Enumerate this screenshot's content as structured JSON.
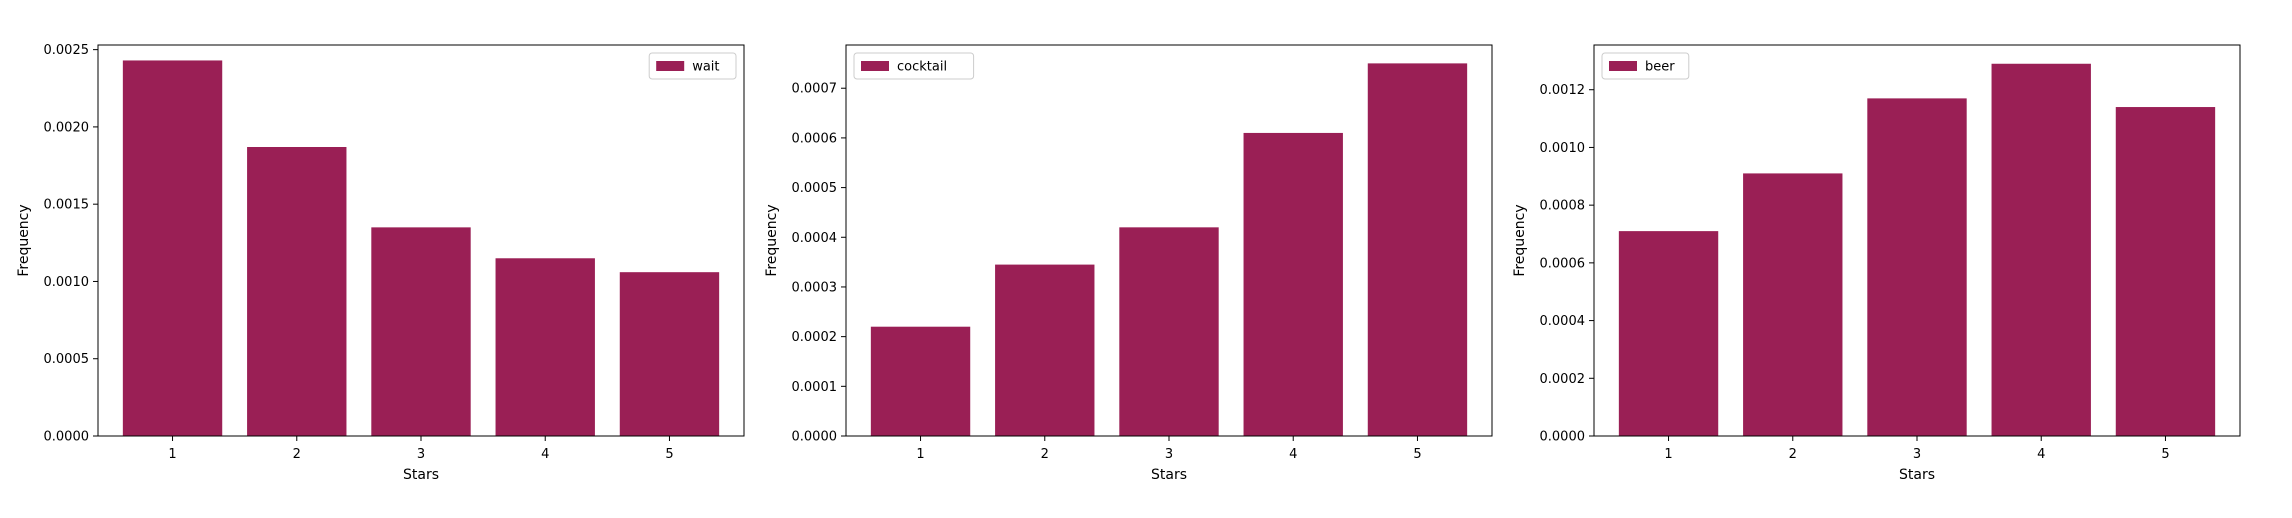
{
  "chart_data": [
    {
      "type": "bar",
      "categories": [
        "1",
        "2",
        "3",
        "4",
        "5"
      ],
      "series": [
        {
          "name": "wait",
          "values": [
            0.00243,
            0.00187,
            0.00135,
            0.00115,
            0.00106
          ]
        }
      ],
      "xlabel": "Stars",
      "ylabel": "Frequency",
      "ylim": [
        0,
        0.00253
      ],
      "yticks": [
        "0.0000",
        "0.0005",
        "0.0010",
        "0.0015",
        "0.0020",
        "0.0025"
      ],
      "legend_position": "top-right",
      "grid": false,
      "bar_color": "#9a1f55"
    },
    {
      "type": "bar",
      "categories": [
        "1",
        "2",
        "3",
        "4",
        "5"
      ],
      "series": [
        {
          "name": "cocktail",
          "values": [
            0.00022,
            0.000345,
            0.00042,
            0.00061,
            0.00075
          ]
        }
      ],
      "xlabel": "Stars",
      "ylabel": "Frequency",
      "ylim": [
        0,
        0.000787
      ],
      "yticks": [
        "0.0000",
        "0.0001",
        "0.0002",
        "0.0003",
        "0.0004",
        "0.0005",
        "0.0006",
        "0.0007"
      ],
      "legend_position": "top-left",
      "grid": false,
      "bar_color": "#9a1f55"
    },
    {
      "type": "bar",
      "categories": [
        "1",
        "2",
        "3",
        "4",
        "5"
      ],
      "series": [
        {
          "name": "beer",
          "values": [
            0.00071,
            0.00091,
            0.00117,
            0.00129,
            0.00114
          ]
        }
      ],
      "xlabel": "Stars",
      "ylabel": "Frequency",
      "ylim": [
        0,
        0.001355
      ],
      "yticks": [
        "0.0000",
        "0.0002",
        "0.0004",
        "0.0006",
        "0.0008",
        "0.0010",
        "0.0012"
      ],
      "legend_position": "top-left",
      "grid": false,
      "bar_color": "#9a1f55"
    }
  ]
}
